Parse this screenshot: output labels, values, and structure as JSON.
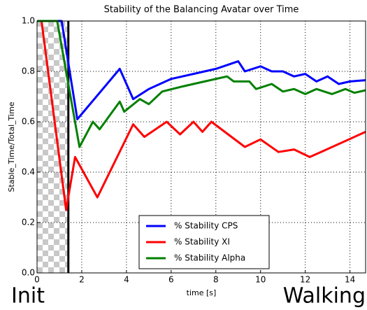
{
  "chart_data": {
    "type": "line",
    "title": "Stability of the Balancing Avatar over Time",
    "xlabel": "time [s]",
    "ylabel": "Stable_Time/Total_Time",
    "xlim": [
      0,
      14.7
    ],
    "ylim": [
      0,
      1
    ],
    "xticks": [
      0,
      2,
      4,
      6,
      8,
      10,
      12,
      14
    ],
    "yticks": [
      {
        "value": 0,
        "label": "0.0"
      },
      {
        "value": 0.2,
        "label": "0.2"
      },
      {
        "value": 0.4,
        "label": "0.4"
      },
      {
        "value": 0.6,
        "label": "0.6"
      },
      {
        "value": 0.8,
        "label": "0.8"
      },
      {
        "value": 1,
        "label": "1.0"
      }
    ],
    "grid": true,
    "legend": "lower center",
    "vline": 1.4,
    "annotations": [
      "Init",
      "Walking"
    ],
    "series": [
      {
        "name": "% Stability CPS",
        "color": "#0000ff",
        "x": [
          0,
          1.1,
          1.8,
          3.7,
          4.3,
          5,
          6,
          7,
          8,
          9,
          9.3,
          10,
          10.5,
          11,
          11.5,
          12,
          12.5,
          13,
          13.5,
          14,
          14.7
        ],
        "values": [
          1.0,
          1.0,
          0.61,
          0.81,
          0.69,
          0.73,
          0.77,
          0.79,
          0.81,
          0.84,
          0.8,
          0.82,
          0.8,
          0.8,
          0.78,
          0.79,
          0.76,
          0.78,
          0.75,
          0.76,
          0.765
        ]
      },
      {
        "name": "% Stability XI",
        "color": "#ff0000",
        "x": [
          0,
          0.2,
          1.3,
          1.7,
          2.7,
          4.3,
          4.8,
          5.8,
          6.4,
          7.0,
          7.4,
          7.8,
          9.3,
          10.0,
          10.8,
          11.5,
          12.2,
          12.7,
          14.7
        ],
        "values": [
          1.0,
          1.0,
          0.25,
          0.46,
          0.3,
          0.59,
          0.54,
          0.6,
          0.55,
          0.6,
          0.56,
          0.6,
          0.5,
          0.53,
          0.48,
          0.49,
          0.46,
          0.48,
          0.56
        ]
      },
      {
        "name": "% Stability Alpha",
        "color": "#008000",
        "x": [
          0,
          0.9,
          1.9,
          2.5,
          2.8,
          3.7,
          3.9,
          4.6,
          5.0,
          5.6,
          6.5,
          7.5,
          8.5,
          8.8,
          9.5,
          9.8,
          10.5,
          11,
          11.5,
          12,
          12.5,
          13.2,
          13.8,
          14.2,
          14.7
        ],
        "values": [
          1.0,
          1.0,
          0.5,
          0.6,
          0.57,
          0.68,
          0.64,
          0.69,
          0.67,
          0.72,
          0.74,
          0.76,
          0.78,
          0.76,
          0.76,
          0.73,
          0.75,
          0.72,
          0.73,
          0.71,
          0.73,
          0.71,
          0.73,
          0.715,
          0.725
        ]
      }
    ]
  }
}
